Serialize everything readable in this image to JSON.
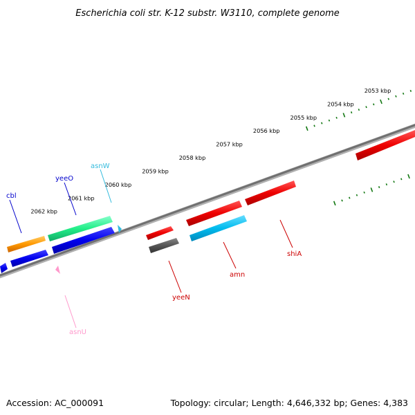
{
  "title": "Escherichia coli str. K-12 substr. W3110, complete genome",
  "footer": {
    "accession": "Accession: AC_000091",
    "summary": "Topology: circular; Length: 4,646,332 bp; Genes: 4,383"
  },
  "ticks": [
    {
      "label": "2053 kbp"
    },
    {
      "label": "2054 kbp"
    },
    {
      "label": "2055 kbp"
    },
    {
      "label": "2056 kbp"
    },
    {
      "label": "2057 kbp"
    },
    {
      "label": "2058 kbp"
    },
    {
      "label": "2059 kbp"
    },
    {
      "label": "2060 kbp"
    },
    {
      "label": "2061 kbp"
    },
    {
      "label": "2062 kbp"
    }
  ],
  "genes": [
    {
      "name": "cbl",
      "color": "#0000cc"
    },
    {
      "name": "yeeO",
      "color": "#0000cc"
    },
    {
      "name": "asnW",
      "color": "#33bbdd"
    },
    {
      "name": "asnU",
      "color": "#ff99cc"
    },
    {
      "name": "yeeN",
      "color": "#cc0000"
    },
    {
      "name": "amn",
      "color": "#cc0000"
    },
    {
      "name": "shiA",
      "color": "#cc0000"
    }
  ],
  "colors": {
    "backbone": "#808080",
    "ticks": "#117711",
    "red": "#ee0000",
    "orange": "#ff9900",
    "green": "#22ee88",
    "blue": "#0000ee",
    "cyan": "#00bbee",
    "gray": "#555555",
    "pink": "#ff99cc"
  }
}
